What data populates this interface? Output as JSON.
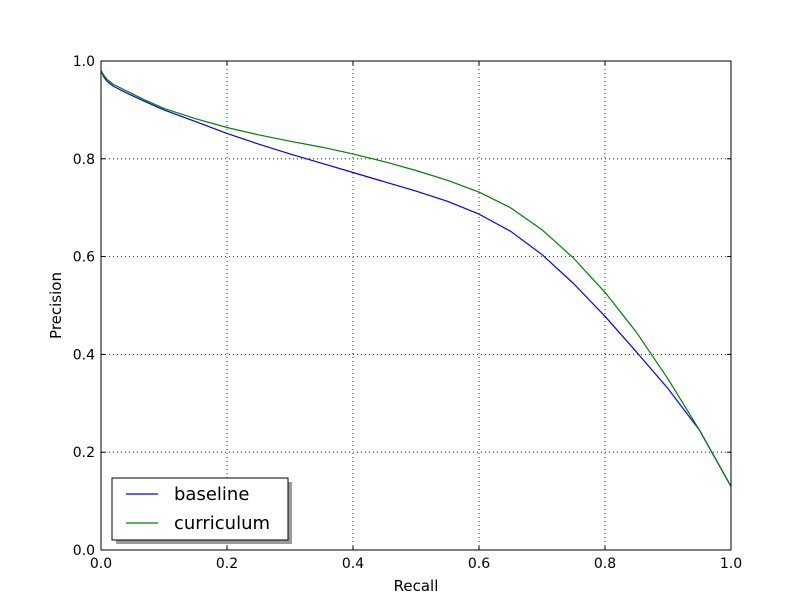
{
  "chart_data": {
    "type": "line",
    "title": "",
    "xlabel": "Recall",
    "ylabel": "Precision",
    "xlim": [
      0.0,
      1.0
    ],
    "ylim": [
      0.0,
      1.0
    ],
    "xticks": [
      "0.0",
      "0.2",
      "0.4",
      "0.6",
      "0.8",
      "1.0"
    ],
    "yticks": [
      "0.0",
      "0.2",
      "0.4",
      "0.6",
      "0.8",
      "1.0"
    ],
    "grid": true,
    "legend_position": "lower-left",
    "series": [
      {
        "name": "baseline",
        "color": "#0000ff",
        "x": [
          0.0,
          0.005,
          0.01,
          0.02,
          0.04,
          0.07,
          0.1,
          0.15,
          0.2,
          0.25,
          0.3,
          0.35,
          0.4,
          0.45,
          0.5,
          0.55,
          0.6,
          0.65,
          0.7,
          0.75,
          0.8,
          0.85,
          0.9,
          0.95,
          1.0
        ],
        "y": [
          0.98,
          0.966,
          0.958,
          0.948,
          0.935,
          0.917,
          0.9,
          0.876,
          0.852,
          0.83,
          0.81,
          0.791,
          0.772,
          0.753,
          0.734,
          0.713,
          0.687,
          0.652,
          0.604,
          0.545,
          0.478,
          0.405,
          0.33,
          0.245,
          0.13
        ]
      },
      {
        "name": "curriculum",
        "color": "#008000",
        "x": [
          0.0,
          0.005,
          0.01,
          0.02,
          0.04,
          0.07,
          0.1,
          0.15,
          0.2,
          0.25,
          0.3,
          0.35,
          0.4,
          0.45,
          0.5,
          0.55,
          0.6,
          0.65,
          0.7,
          0.75,
          0.8,
          0.85,
          0.9,
          0.95,
          1.0
        ],
        "y": [
          0.98,
          0.97,
          0.962,
          0.952,
          0.939,
          0.92,
          0.903,
          0.882,
          0.864,
          0.849,
          0.836,
          0.824,
          0.81,
          0.794,
          0.776,
          0.756,
          0.732,
          0.7,
          0.655,
          0.597,
          0.527,
          0.445,
          0.35,
          0.245,
          0.13
        ]
      }
    ]
  }
}
